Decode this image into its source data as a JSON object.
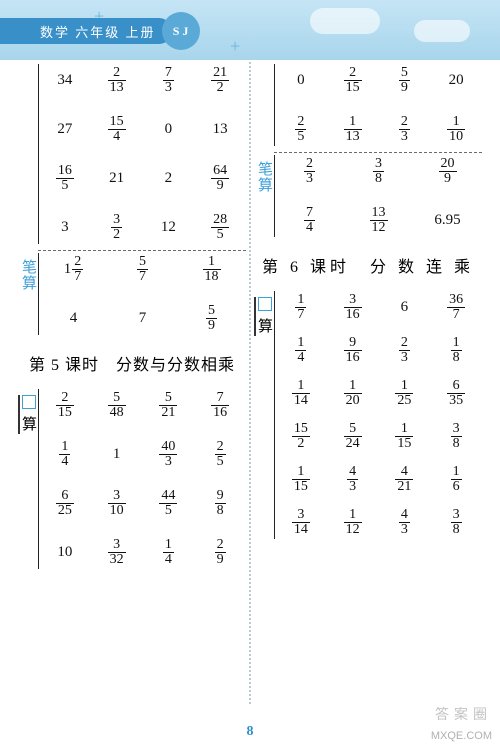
{
  "header": {
    "subject": "数学",
    "grade": "六年级",
    "term": "上册",
    "badge": "S J",
    "bg_top": "#c5e5f5",
    "bg_bottom": "#a8d5ec",
    "band_color": "#3990c9"
  },
  "colors": {
    "accent": "#3fa0d8",
    "text": "#111111",
    "divider": "#bac9d2"
  },
  "labels": {
    "bisuan": "笔算",
    "kousuan_box": "算",
    "kousuan_sq": "口"
  },
  "left": {
    "top_grid": [
      [
        "34",
        "2/13",
        "7/3",
        "21/2"
      ],
      [
        "27",
        "15/4",
        "0",
        "13"
      ],
      [
        "16/5",
        "21",
        "2",
        "64/9"
      ],
      [
        "3",
        "3/2",
        "12",
        "28/5"
      ]
    ],
    "bisuan_rows": [
      [
        "1 2/7",
        "5/7",
        "1/18"
      ],
      [
        "4",
        "7",
        "5/9"
      ]
    ],
    "lesson5_title": "第 5 课时　分数与分数相乘",
    "lesson5_grid": [
      [
        "2/15",
        "5/48",
        "5/21",
        "7/16"
      ],
      [
        "1/4",
        "1",
        "40/3",
        "2/5"
      ],
      [
        "6/25",
        "3/10",
        "44/5",
        "9/8"
      ],
      [
        "10",
        "3/32",
        "1/4",
        "2/9"
      ]
    ]
  },
  "right": {
    "top_grid": [
      [
        "0",
        "2/15",
        "5/9",
        "20"
      ],
      [
        "2/5",
        "1/13",
        "2/3",
        "1/10"
      ]
    ],
    "bisuan_rows": [
      [
        "2/3",
        "3/8",
        "20/9"
      ],
      [
        "7/4",
        "13/12",
        "6.95"
      ]
    ],
    "lesson6_title": "第 6 课时　分 数 连 乘",
    "lesson6_grid": [
      [
        "1/7",
        "3/16",
        "6",
        "36/7"
      ],
      [
        "1/4",
        "9/16",
        "2/3",
        "1/8"
      ],
      [
        "1/14",
        "1/20",
        "1/25",
        "6/35"
      ],
      [
        "15/2",
        "5/24",
        "1/15",
        "3/8"
      ],
      [
        "1/15",
        "4/3",
        "4/21",
        "1/6"
      ],
      [
        "3/14",
        "1/12",
        "4/3",
        "3/8"
      ]
    ]
  },
  "page_number": "8",
  "watermark_top": "答案圈",
  "watermark_bottom": "MXQE.COM"
}
